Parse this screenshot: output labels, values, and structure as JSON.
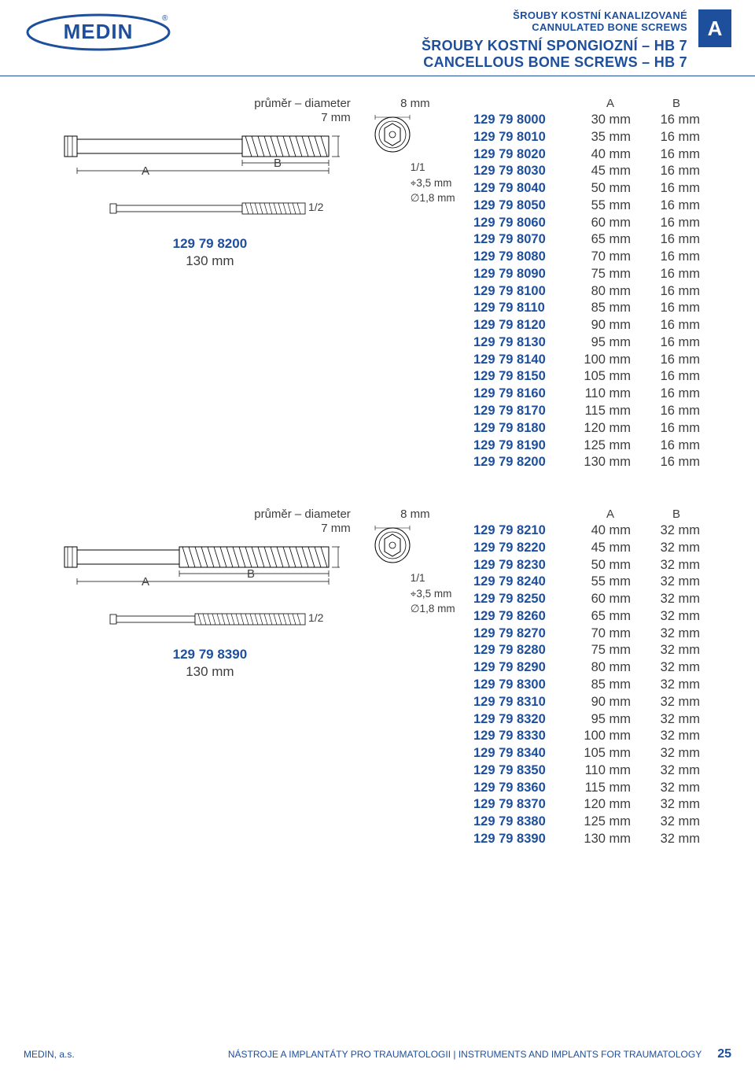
{
  "header": {
    "sub1": "ŠROUBY KOSTNÍ KANALIZOVANÉ",
    "sub2": "CANNULATED BONE SCREWS",
    "main1": "ŠROUBY KOSTNÍ SPONGIOZNÍ – HB 7",
    "main2": "CANCELLOUS BONE SCREWS – HB 7",
    "tab": "A",
    "logo_text": "MEDIN",
    "logo_color": "#1d4f9c"
  },
  "section1": {
    "diameter_label": "průměr – diameter",
    "diameter_value": "7 mm",
    "dim_A": "A",
    "dim_B": "B",
    "scale_half": "1/2",
    "ref_code": "129 79 8200",
    "ref_len": "130 mm",
    "head_width": "8 mm",
    "scale_full": "1/1",
    "hex": "⌖3,5 mm",
    "cannula": "∅1,8 mm",
    "table": {
      "hA": "A",
      "hB": "B",
      "rows": [
        {
          "code": "129 79 8000",
          "a": "30 mm",
          "b": "16 mm"
        },
        {
          "code": "129 79 8010",
          "a": "35 mm",
          "b": "16 mm"
        },
        {
          "code": "129 79 8020",
          "a": "40 mm",
          "b": "16 mm"
        },
        {
          "code": "129 79 8030",
          "a": "45 mm",
          "b": "16 mm"
        },
        {
          "code": "129 79 8040",
          "a": "50 mm",
          "b": "16 mm"
        },
        {
          "code": "129 79 8050",
          "a": "55 mm",
          "b": "16 mm"
        },
        {
          "code": "129 79 8060",
          "a": "60 mm",
          "b": "16 mm"
        },
        {
          "code": "129 79 8070",
          "a": "65 mm",
          "b": "16 mm"
        },
        {
          "code": "129 79 8080",
          "a": "70 mm",
          "b": "16 mm"
        },
        {
          "code": "129 79 8090",
          "a": "75 mm",
          "b": "16 mm"
        },
        {
          "code": "129 79 8100",
          "a": "80 mm",
          "b": "16 mm"
        },
        {
          "code": "129 79 8110",
          "a": "85 mm",
          "b": "16 mm"
        },
        {
          "code": "129 79 8120",
          "a": "90 mm",
          "b": "16 mm"
        },
        {
          "code": "129 79 8130",
          "a": "95 mm",
          "b": "16 mm"
        },
        {
          "code": "129 79 8140",
          "a": "100 mm",
          "b": "16 mm"
        },
        {
          "code": "129 79 8150",
          "a": "105 mm",
          "b": "16 mm"
        },
        {
          "code": "129 79 8160",
          "a": "110 mm",
          "b": "16 mm"
        },
        {
          "code": "129 79 8170",
          "a": "115 mm",
          "b": "16 mm"
        },
        {
          "code": "129 79 8180",
          "a": "120 mm",
          "b": "16 mm"
        },
        {
          "code": "129 79 8190",
          "a": "125 mm",
          "b": "16 mm"
        },
        {
          "code": "129 79 8200",
          "a": "130 mm",
          "b": "16 mm"
        }
      ]
    }
  },
  "section2": {
    "diameter_label": "průměr – diameter",
    "diameter_value": "7 mm",
    "dim_A": "A",
    "dim_B": "B",
    "scale_half": "1/2",
    "ref_code": "129 79 8390",
    "ref_len": "130 mm",
    "head_width": "8 mm",
    "scale_full": "1/1",
    "hex": "⌖3,5 mm",
    "cannula": "∅1,8 mm",
    "table": {
      "hA": "A",
      "hB": "B",
      "rows": [
        {
          "code": "129 79 8210",
          "a": "40 mm",
          "b": "32 mm"
        },
        {
          "code": "129 79 8220",
          "a": "45 mm",
          "b": "32 mm"
        },
        {
          "code": "129 79 8230",
          "a": "50 mm",
          "b": "32 mm"
        },
        {
          "code": "129 79 8240",
          "a": "55 mm",
          "b": "32 mm"
        },
        {
          "code": "129 79 8250",
          "a": "60 mm",
          "b": "32 mm"
        },
        {
          "code": "129 79 8260",
          "a": "65 mm",
          "b": "32 mm"
        },
        {
          "code": "129 79 8270",
          "a": "70 mm",
          "b": "32 mm"
        },
        {
          "code": "129 79 8280",
          "a": "75 mm",
          "b": "32 mm"
        },
        {
          "code": "129 79 8290",
          "a": "80 mm",
          "b": "32 mm"
        },
        {
          "code": "129 79 8300",
          "a": "85 mm",
          "b": "32 mm"
        },
        {
          "code": "129 79 8310",
          "a": "90 mm",
          "b": "32 mm"
        },
        {
          "code": "129 79 8320",
          "a": "95 mm",
          "b": "32 mm"
        },
        {
          "code": "129 79 8330",
          "a": "100 mm",
          "b": "32 mm"
        },
        {
          "code": "129 79 8340",
          "a": "105 mm",
          "b": "32 mm"
        },
        {
          "code": "129 79 8350",
          "a": "110 mm",
          "b": "32 mm"
        },
        {
          "code": "129 79 8360",
          "a": "115 mm",
          "b": "32 mm"
        },
        {
          "code": "129 79 8370",
          "a": "120 mm",
          "b": "32 mm"
        },
        {
          "code": "129 79 8380",
          "a": "125 mm",
          "b": "32 mm"
        },
        {
          "code": "129 79 8390",
          "a": "130 mm",
          "b": "32 mm"
        }
      ]
    }
  },
  "footer": {
    "left": "MEDIN, a.s.",
    "right": "NÁSTROJE A IMPLANTÁTY PRO TRAUMATOLOGII | INSTRUMENTS AND IMPLANTS FOR TRAUMATOLOGY",
    "page": "25"
  },
  "colors": {
    "brand": "#1d4f9c",
    "text": "#3d3d3d",
    "bg": "#ffffff"
  }
}
